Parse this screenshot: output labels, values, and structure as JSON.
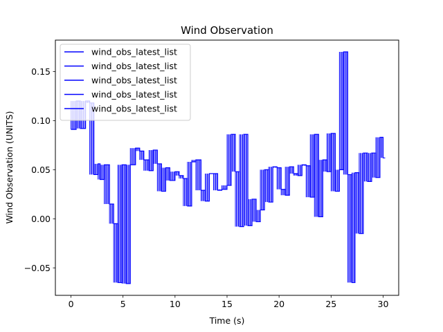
{
  "chart_data": {
    "type": "line",
    "title": "Wind Observation",
    "xlabel": "Time (s)",
    "ylabel": "Wind Observation (UNITS)",
    "xlim": [
      -1.5,
      31.5
    ],
    "ylim": [
      -0.078,
      0.182
    ],
    "xticks": [
      0,
      5,
      10,
      15,
      20,
      25,
      30
    ],
    "xtick_labels": [
      "0",
      "5",
      "10",
      "15",
      "20",
      "25",
      "30"
    ],
    "yticks": [
      -0.05,
      0.0,
      0.05,
      0.1,
      0.15
    ],
    "ytick_labels": [
      "−0.05",
      "0.00",
      "0.05",
      "0.10",
      "0.15"
    ],
    "grid": false,
    "legend_position": "upper-left",
    "line_color": "#0000ff",
    "series": [
      {
        "name": "wind_obs_latest_list"
      },
      {
        "name": "wind_obs_latest_list"
      },
      {
        "name": "wind_obs_latest_list"
      },
      {
        "name": "wind_obs_latest_list"
      },
      {
        "name": "wind_obs_latest_list"
      }
    ],
    "x": [
      0.0,
      0.5,
      0.9,
      1.4,
      1.8,
      2.2,
      2.6,
      2.8,
      3.2,
      3.7,
      4.1,
      4.5,
      4.9,
      5.3,
      5.7,
      6.2,
      6.6,
      7.0,
      7.5,
      7.9,
      8.3,
      8.7,
      9.1,
      9.5,
      10.0,
      10.4,
      10.8,
      11.2,
      11.6,
      12.0,
      12.5,
      12.9,
      13.3,
      13.7,
      14.1,
      14.5,
      15.0,
      15.4,
      15.8,
      16.2,
      16.6,
      17.0,
      17.4,
      17.8,
      18.2,
      18.6,
      19.0,
      19.4,
      19.8,
      20.2,
      20.6,
      21.0,
      21.4,
      21.8,
      22.2,
      22.6,
      23.0,
      23.4,
      23.8,
      24.2,
      24.6,
      25.0,
      25.4,
      25.8,
      26.2,
      26.6,
      27.0,
      27.3,
      27.7,
      28.1,
      28.5,
      28.9,
      29.3,
      29.7,
      30.0
    ],
    "y": [
      0.091,
      0.12,
      0.092,
      0.12,
      0.118,
      0.045,
      0.056,
      0.04,
      0.055,
      0.015,
      -0.005,
      -0.065,
      0.055,
      -0.066,
      0.055,
      0.072,
      0.069,
      0.06,
      0.049,
      0.07,
      0.056,
      0.028,
      0.052,
      0.039,
      0.048,
      0.044,
      0.041,
      0.013,
      0.058,
      0.06,
      0.029,
      0.018,
      0.046,
      0.046,
      0.029,
      0.03,
      0.034,
      0.086,
      0.048,
      -0.008,
      0.086,
      -0.007,
      0.02,
      -0.003,
      0.009,
      0.05,
      0.017,
      0.053,
      0.052,
      0.03,
      0.024,
      0.053,
      0.046,
      0.044,
      0.055,
      0.054,
      0.022,
      0.086,
      0.002,
      0.06,
      0.048,
      0.087,
      0.028,
      0.05,
      0.17,
      0.045,
      -0.065,
      0.047,
      -0.015,
      0.067,
      0.038,
      0.067,
      0.042,
      0.083,
      0.062
    ]
  }
}
